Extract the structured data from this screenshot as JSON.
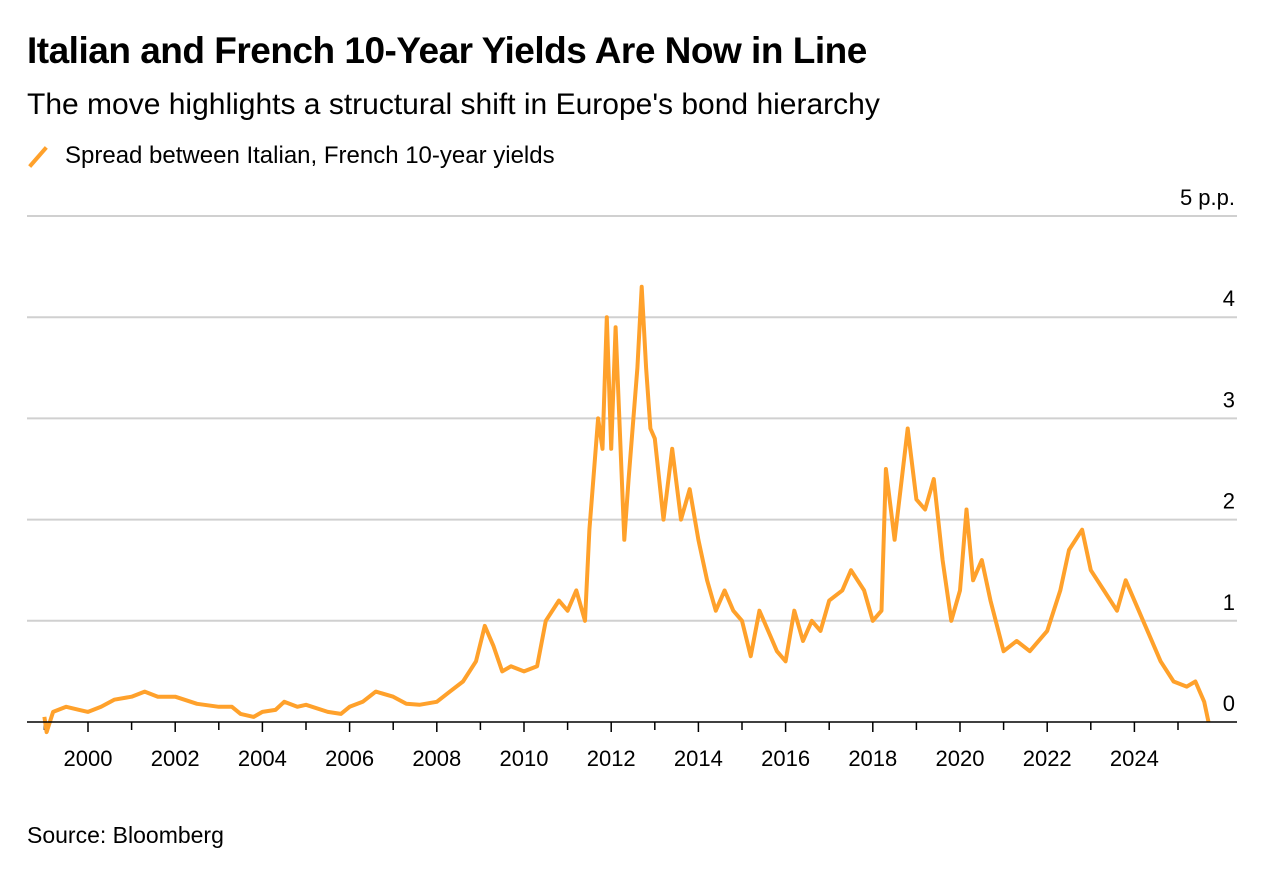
{
  "title": "Italian and French 10-Year Yields Are Now in Line",
  "subtitle": "The move highlights a structural shift in Europe's bond hierarchy",
  "source": "Source: Bloomberg",
  "chart_data": {
    "type": "line",
    "title": "Italian and French 10-Year Yields Are Now in Line",
    "subtitle": "The move highlights a structural shift in Europe's bond hierarchy",
    "ylabel": "p.p.",
    "xlabel": "",
    "ylim": [
      0,
      5
    ],
    "xlim": [
      1999.0,
      2025.8
    ],
    "grid": true,
    "legend_position": "top-left",
    "y_ticks": [
      {
        "value": 5,
        "label": "5 p.p."
      },
      {
        "value": 4,
        "label": "4"
      },
      {
        "value": 3,
        "label": "3"
      },
      {
        "value": 2,
        "label": "2"
      },
      {
        "value": 1,
        "label": "1"
      },
      {
        "value": 0,
        "label": "0"
      }
    ],
    "x_ticks": [
      "2000",
      "2002",
      "2004",
      "2006",
      "2008",
      "2010",
      "2012",
      "2014",
      "2016",
      "2018",
      "2020",
      "2022",
      "2024"
    ],
    "series": [
      {
        "name": "Spread between Italian, French 10-year yields",
        "color": "#FFA12B",
        "x": [
          1999.0,
          1999.05,
          1999.2,
          1999.5,
          1999.8,
          2000.0,
          2000.3,
          2000.6,
          2001.0,
          2001.3,
          2001.6,
          2002.0,
          2002.5,
          2003.0,
          2003.3,
          2003.5,
          2003.8,
          2004.0,
          2004.3,
          2004.5,
          2004.8,
          2005.0,
          2005.5,
          2005.8,
          2006.0,
          2006.3,
          2006.6,
          2007.0,
          2007.3,
          2007.6,
          2008.0,
          2008.3,
          2008.6,
          2008.9,
          2009.1,
          2009.3,
          2009.5,
          2009.7,
          2010.0,
          2010.3,
          2010.5,
          2010.8,
          2011.0,
          2011.2,
          2011.4,
          2011.5,
          2011.7,
          2011.8,
          2011.9,
          2012.0,
          2012.1,
          2012.3,
          2012.4,
          2012.6,
          2012.7,
          2012.8,
          2012.9,
          2013.0,
          2013.2,
          2013.4,
          2013.6,
          2013.8,
          2014.0,
          2014.2,
          2014.4,
          2014.6,
          2014.8,
          2015.0,
          2015.2,
          2015.4,
          2015.6,
          2015.8,
          2016.0,
          2016.2,
          2016.4,
          2016.6,
          2016.8,
          2017.0,
          2017.3,
          2017.5,
          2017.8,
          2018.0,
          2018.2,
          2018.3,
          2018.5,
          2018.8,
          2019.0,
          2019.2,
          2019.4,
          2019.6,
          2019.8,
          2020.0,
          2020.15,
          2020.3,
          2020.5,
          2020.7,
          2021.0,
          2021.3,
          2021.6,
          2022.0,
          2022.3,
          2022.5,
          2022.8,
          2023.0,
          2023.3,
          2023.6,
          2023.8,
          2024.0,
          2024.3,
          2024.6,
          2024.9,
          2025.2,
          2025.4,
          2025.6,
          2025.7
        ],
        "values": [
          0.05,
          -0.1,
          0.1,
          0.15,
          0.12,
          0.1,
          0.15,
          0.22,
          0.25,
          0.3,
          0.25,
          0.25,
          0.18,
          0.15,
          0.15,
          0.08,
          0.05,
          0.1,
          0.12,
          0.2,
          0.15,
          0.17,
          0.1,
          0.08,
          0.15,
          0.2,
          0.3,
          0.25,
          0.18,
          0.17,
          0.2,
          0.3,
          0.4,
          0.6,
          0.95,
          0.75,
          0.5,
          0.55,
          0.5,
          0.55,
          1.0,
          1.2,
          1.1,
          1.3,
          1.0,
          1.9,
          3.0,
          2.7,
          4.0,
          2.7,
          3.9,
          1.8,
          2.4,
          3.5,
          4.3,
          3.5,
          2.9,
          2.8,
          2.0,
          2.7,
          2.0,
          2.3,
          1.8,
          1.4,
          1.1,
          1.3,
          1.1,
          1.0,
          0.65,
          1.1,
          0.9,
          0.7,
          0.6,
          1.1,
          0.8,
          1.0,
          0.9,
          1.2,
          1.3,
          1.5,
          1.3,
          1.0,
          1.1,
          2.5,
          1.8,
          2.9,
          2.2,
          2.1,
          2.4,
          1.6,
          1.0,
          1.3,
          2.1,
          1.4,
          1.6,
          1.2,
          0.7,
          0.8,
          0.7,
          0.9,
          1.3,
          1.7,
          1.9,
          1.5,
          1.3,
          1.1,
          1.4,
          1.2,
          0.9,
          0.6,
          0.4,
          0.35,
          0.4,
          0.2,
          0.0
        ]
      }
    ]
  }
}
